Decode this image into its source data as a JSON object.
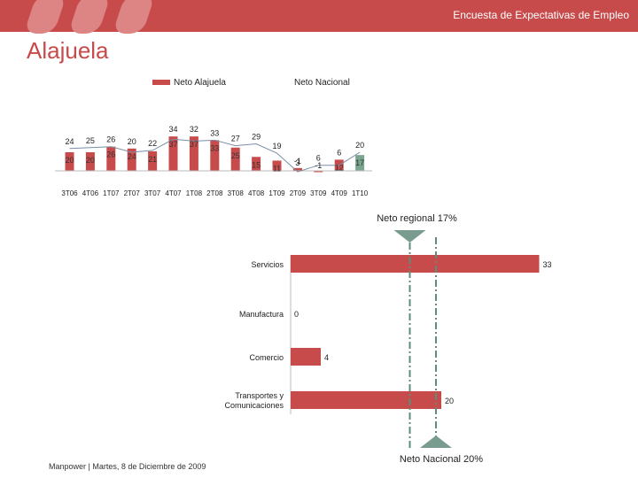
{
  "header": {
    "title": "Encuesta de Expectativas de Empleo"
  },
  "page_title": "Alajuela",
  "footer": {
    "text": "Manpower | Martes, 8 de Diciembre de 2009"
  },
  "colors": {
    "brand": "#c84b4b",
    "brand_light": "#dd8585",
    "national_line": "#7a8ea6",
    "reference_marker": "#7a9c8e",
    "last_bar": "#7aa58e"
  },
  "chart_data": [
    {
      "type": "bar",
      "legend": [
        "Neto Alajuela",
        "Neto Nacional"
      ],
      "categories": [
        "3T06",
        "4T06",
        "1T07",
        "2T07",
        "3T07",
        "4T07",
        "1T08",
        "2T08",
        "3T08",
        "4T08",
        "1T09",
        "2T09",
        "3T09",
        "4T09",
        "1T10"
      ],
      "series": [
        {
          "name": "Neto Alajuela",
          "type": "bar",
          "values": [
            20,
            20,
            26,
            24,
            21,
            37,
            37,
            33,
            25,
            15,
            11,
            3,
            -1,
            12,
            17
          ]
        },
        {
          "name": "Neto Nacional",
          "type": "line",
          "values": [
            24,
            25,
            26,
            20,
            22,
            34,
            32,
            33,
            27,
            29,
            19,
            -1,
            6,
            6,
            20
          ]
        }
      ],
      "ylim": [
        -3,
        40
      ]
    },
    {
      "type": "bar",
      "orientation": "horizontal",
      "categories": [
        "Servicios",
        "Manufactura",
        "Comercio",
        "Transportes y Comunicaciones"
      ],
      "values": [
        33,
        0,
        4,
        20
      ],
      "xlim": [
        0,
        35
      ],
      "reference_lines": [
        {
          "label": "Neto regional 17%",
          "value": 17
        },
        {
          "label": "Neto Nacional 20%",
          "value": 20
        }
      ]
    }
  ]
}
